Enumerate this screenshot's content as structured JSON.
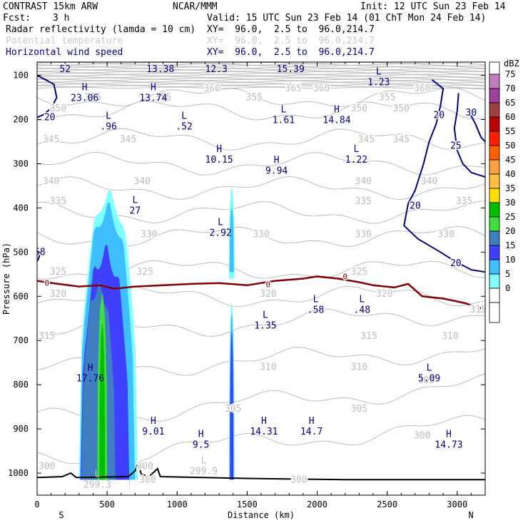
{
  "header": {
    "model": "CONTRAST 15km ARW",
    "center": "NCAR/MMM",
    "init": "Init: 12 UTC Sun 23 Feb 14",
    "fcst_label": "Fcst:",
    "fcst_value": "3 h",
    "valid": "Valid: 15 UTC Sun 23 Feb 14 (01 ChT Mon 24 Feb 14)",
    "fields": [
      {
        "name": "Radar reflectivity (lamda = 10 cm)",
        "xy": "XY=  96.0,  2.5 to  96.0,214.7",
        "color": "#000000"
      },
      {
        "name": "Potential temperature",
        "xy": "XY=  96.0,  2.5 to  96.0,214.7",
        "color": "#c8c8c8"
      },
      {
        "name": "Horizontal wind speed",
        "xy": "XY=  96.0,  2.5 to  96.0,214.7",
        "color": "#00007f"
      }
    ]
  },
  "chart_data": {
    "type": "contour",
    "xlabel": "Distance (km)",
    "ylabel": "Pressure (hPa)",
    "xlim": [
      0,
      3200
    ],
    "ylim": [
      1050,
      70
    ],
    "x_ticks": [
      0,
      500,
      1000,
      1500,
      2000,
      2500,
      3000
    ],
    "y_ticks": [
      100,
      200,
      300,
      400,
      500,
      600,
      700,
      800,
      900,
      1000
    ],
    "x_end_labels": {
      "left": "S",
      "right": "N"
    },
    "colorbar": {
      "title": "dBZ",
      "levels": [
        0,
        5,
        10,
        15,
        20,
        25,
        30,
        35,
        40,
        45,
        50,
        55,
        60,
        65,
        70,
        75
      ],
      "colors": [
        "#ffffff",
        "#7fffff",
        "#3fbfff",
        "#3f3fff",
        "#3f7fbf",
        "#3fdf3f",
        "#00bf00",
        "#ffdf00",
        "#ffbf3f",
        "#ff9f3f",
        "#ff5f00",
        "#ff1f00",
        "#bf0000",
        "#a03f3f",
        "#9f3f9f",
        "#bf7fbf"
      ]
    },
    "reflectivity_columns": [
      {
        "x_range": [
          300,
          700
        ],
        "top_hPa": 350,
        "max_dBZ": 30
      },
      {
        "x_range": [
          1370,
          1410
        ],
        "top_hPa": 355,
        "max_dBZ": 20
      }
    ],
    "theta_contour_labels": [
      {
        "text": "355",
        "x": 400,
        "p": 150
      },
      {
        "text": "355",
        "x": 900,
        "p": 150
      },
      {
        "text": "355",
        "x": 1550,
        "p": 150
      },
      {
        "text": "355",
        "x": 2500,
        "p": 150
      },
      {
        "text": "360",
        "x": 1250,
        "p": 130
      },
      {
        "text": "360",
        "x": 2030,
        "p": 130
      },
      {
        "text": "360",
        "x": 2750,
        "p": 130
      },
      {
        "text": "365",
        "x": 1830,
        "p": 130
      },
      {
        "text": "350",
        "x": 150,
        "p": 175
      },
      {
        "text": "350",
        "x": 2300,
        "p": 175
      },
      {
        "text": "350",
        "x": 2600,
        "p": 175
      },
      {
        "text": "345",
        "x": 100,
        "p": 245
      },
      {
        "text": "345",
        "x": 650,
        "p": 245
      },
      {
        "text": "345",
        "x": 2350,
        "p": 245
      },
      {
        "text": "345",
        "x": 2600,
        "p": 245
      },
      {
        "text": "340",
        "x": 100,
        "p": 340
      },
      {
        "text": "340",
        "x": 750,
        "p": 340
      },
      {
        "text": "340",
        "x": 2330,
        "p": 340
      },
      {
        "text": "340",
        "x": 2800,
        "p": 340
      },
      {
        "text": "335",
        "x": 150,
        "p": 385
      },
      {
        "text": "335",
        "x": 2330,
        "p": 385
      },
      {
        "text": "335",
        "x": 3050,
        "p": 385
      },
      {
        "text": "330",
        "x": 800,
        "p": 460
      },
      {
        "text": "330",
        "x": 1600,
        "p": 460
      },
      {
        "text": "330",
        "x": 2330,
        "p": 460
      },
      {
        "text": "330",
        "x": 2920,
        "p": 460
      },
      {
        "text": "325",
        "x": 150,
        "p": 545
      },
      {
        "text": "325",
        "x": 770,
        "p": 545
      },
      {
        "text": "325",
        "x": 2300,
        "p": 545
      },
      {
        "text": "320",
        "x": 150,
        "p": 595
      },
      {
        "text": "320",
        "x": 1650,
        "p": 595
      },
      {
        "text": "320",
        "x": 2480,
        "p": 595
      },
      {
        "text": "315",
        "x": 70,
        "p": 690
      },
      {
        "text": "315",
        "x": 2370,
        "p": 690
      },
      {
        "text": "315",
        "x": 3150,
        "p": 630
      },
      {
        "text": "310",
        "x": 1650,
        "p": 760
      },
      {
        "text": "310",
        "x": 2300,
        "p": 760
      },
      {
        "text": "310",
        "x": 2950,
        "p": 690
      },
      {
        "text": "305",
        "x": 1400,
        "p": 855
      },
      {
        "text": "305",
        "x": 2300,
        "p": 855
      },
      {
        "text": "305",
        "x": 2780,
        "p": 790
      },
      {
        "text": "300",
        "x": 70,
        "p": 985
      },
      {
        "text": "300",
        "x": 2750,
        "p": 915
      },
      {
        "text": "300",
        "x": 1870,
        "p": 1015
      },
      {
        "text": "300",
        "x": 790,
        "p": 1015
      },
      {
        "text": "300",
        "x": 770,
        "p": 985
      }
    ],
    "wind_contour_labels": [
      {
        "text": "20",
        "x": 90,
        "p": 195
      },
      {
        "text": "20",
        "x": 2870,
        "p": 190
      },
      {
        "text": "25",
        "x": 2990,
        "p": 260
      },
      {
        "text": "30",
        "x": 3100,
        "p": 185
      },
      {
        "text": "20",
        "x": 2700,
        "p": 395
      },
      {
        "text": "20",
        "x": 2990,
        "p": 525
      },
      {
        "text": "58",
        "x": 20,
        "p": 500
      }
    ],
    "freezing_level_label": "0",
    "freezing_level_label_positions": [
      {
        "x": 70,
        "p": 570
      },
      {
        "x": 1650,
        "p": 573
      },
      {
        "x": 2200,
        "p": 555
      }
    ],
    "wind_extrema": [
      {
        "type": "L",
        "value": "52",
        "x": 200,
        "p": 75
      },
      {
        "type": "H",
        "value": "13.38",
        "x": 880,
        "p": 75
      },
      {
        "type": "H",
        "value": "12.3",
        "x": 1280,
        "p": 75
      },
      {
        "type": "H",
        "value": "15.39",
        "x": 1810,
        "p": 75
      },
      {
        "type": "L",
        "value": "1.23",
        "x": 2440,
        "p": 105
      },
      {
        "type": "H",
        "value": "23.06",
        "x": 340,
        "p": 140
      },
      {
        "type": "H",
        "value": "13.74",
        "x": 830,
        "p": 140
      },
      {
        "type": "L",
        "value": ".96",
        "x": 510,
        "p": 205
      },
      {
        "type": "L",
        "value": ".52",
        "x": 1050,
        "p": 205
      },
      {
        "type": "L",
        "value": "1.61",
        "x": 1760,
        "p": 190
      },
      {
        "type": "H",
        "value": "14.84",
        "x": 2140,
        "p": 190
      },
      {
        "type": "H",
        "value": "10.15",
        "x": 1300,
        "p": 280
      },
      {
        "type": "H",
        "value": "9.94",
        "x": 1710,
        "p": 305
      },
      {
        "type": "L",
        "value": "1.22",
        "x": 2280,
        "p": 280
      },
      {
        "type": "L",
        "value": "27",
        "x": 700,
        "p": 395
      },
      {
        "type": "L",
        "value": "2.92",
        "x": 1310,
        "p": 445
      },
      {
        "type": "L",
        "value": ".58",
        "x": 1990,
        "p": 620
      },
      {
        "type": "L",
        "value": ".48",
        "x": 2320,
        "p": 620
      },
      {
        "type": "L",
        "value": "1.35",
        "x": 1630,
        "p": 655
      },
      {
        "type": "H",
        "value": "17.76",
        "x": 380,
        "p": 775
      },
      {
        "type": "L",
        "value": "5.09",
        "x": 2800,
        "p": 775
      },
      {
        "type": "H",
        "value": "9.01",
        "x": 830,
        "p": 895
      },
      {
        "type": "H",
        "value": "9.5",
        "x": 1170,
        "p": 925
      },
      {
        "type": "H",
        "value": "14.31",
        "x": 1620,
        "p": 895
      },
      {
        "type": "H",
        "value": "14.7",
        "x": 1960,
        "p": 895
      },
      {
        "type": "H",
        "value": "14.73",
        "x": 2940,
        "p": 925
      }
    ],
    "theta_extrema": [
      {
        "type": "L",
        "value": "299.3",
        "x": 430,
        "p": 1015
      },
      {
        "type": "L",
        "value": "299.9",
        "x": 1190,
        "p": 985
      }
    ]
  }
}
